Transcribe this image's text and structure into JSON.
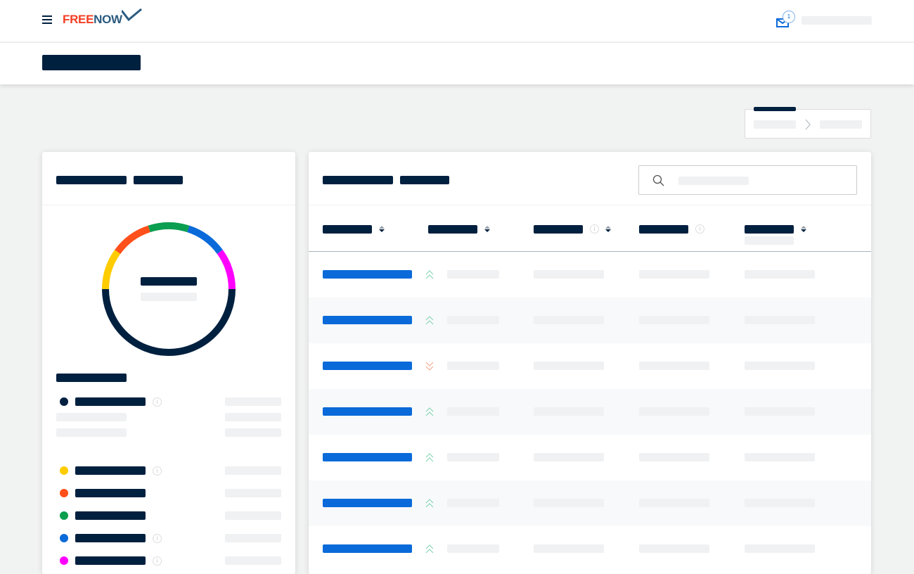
{
  "header": {
    "logo_part1": "FREE",
    "logo_part2": "NOW",
    "notification_count": "1",
    "menu_icon": "hamburger-icon",
    "inbox_icon": "envelope-icon"
  },
  "colors": {
    "navy": "#00203f",
    "link_blue": "#0a6ad9",
    "skeleton_grey": "#f0f1f3",
    "logo_red": "#f53d23",
    "logo_navy": "#2a5a80",
    "trend_up": "#7fd4b0",
    "trend_down": "#f5a48a"
  },
  "donut": {
    "segments": [
      {
        "color": "#00203f",
        "value": 50
      },
      {
        "color": "#ffcc00",
        "value": 10
      },
      {
        "color": "#ff4f1a",
        "value": 10
      },
      {
        "color": "#0a9e50",
        "value": 10
      },
      {
        "color": "#0a6ad9",
        "value": 10
      },
      {
        "color": "#ff00ff",
        "value": 10
      }
    ]
  },
  "legend": [
    {
      "color": "#00203f",
      "info": true,
      "sub_rows": 2
    },
    {
      "color": "#ffcc00",
      "info": true,
      "sub_rows": 0
    },
    {
      "color": "#ff4f1a",
      "info": false,
      "sub_rows": 0
    },
    {
      "color": "#0a9e50",
      "info": false,
      "sub_rows": 0
    },
    {
      "color": "#0a6ad9",
      "info": true,
      "sub_rows": 0
    },
    {
      "color": "#ff00ff",
      "info": true,
      "sub_rows": 0
    }
  ],
  "table": {
    "columns": [
      {
        "sortable": true,
        "info": false
      },
      {
        "sortable": true,
        "info": false
      },
      {
        "sortable": true,
        "info": true
      },
      {
        "sortable": false,
        "info": true
      },
      {
        "sortable": true,
        "info": false
      }
    ],
    "rows": [
      {
        "trend": "up"
      },
      {
        "trend": "up"
      },
      {
        "trend": "down"
      },
      {
        "trend": "up"
      },
      {
        "trend": "up"
      },
      {
        "trend": "up"
      },
      {
        "trend": "up"
      }
    ]
  },
  "search": {
    "icon": "search-icon"
  }
}
